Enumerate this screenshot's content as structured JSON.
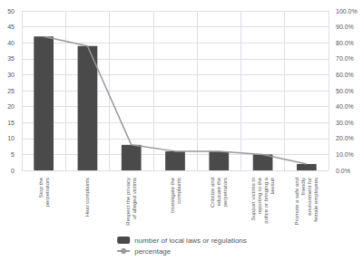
{
  "chart_data": {
    "type": "bar",
    "categories": [
      "Stop the\nperpetrators",
      "Hear complaints",
      "Respect the privacy\nof alleged victims",
      "Investigate the\ncomplaints",
      "Criticize and\neducate the\nperpetrators",
      "Support victims in\nreporting to the\npolice or bringing a\nlawsuit",
      "Promote a safe and\nfriendly\nenvironment for\nfemale employees"
    ],
    "series": [
      {
        "name": "number of local laws or regulations",
        "type": "bar",
        "color": "#4a4a4a",
        "values": [
          42,
          39,
          8,
          6,
          6,
          5,
          2
        ]
      },
      {
        "name": "percentage",
        "type": "line",
        "color": "#999999",
        "axis": "y2",
        "values": [
          0.84,
          0.78,
          0.16,
          0.12,
          0.12,
          0.1,
          0.04
        ]
      }
    ],
    "ylim": [
      0,
      50
    ],
    "yticks": [
      0,
      5,
      10,
      15,
      20,
      25,
      30,
      35,
      40,
      45,
      50
    ],
    "y2lim": [
      0.0,
      1.0
    ],
    "y2ticks": [
      {
        "value": 0.0,
        "label": "0.0%"
      },
      {
        "value": 0.1,
        "label": "10.0%"
      },
      {
        "value": 0.2,
        "label": "20.0%"
      },
      {
        "value": 0.3,
        "label": "30.0%"
      },
      {
        "value": 0.4,
        "label": "40.0%"
      },
      {
        "value": 0.5,
        "label": "50.0%"
      },
      {
        "value": 0.6,
        "label": "60.0%"
      },
      {
        "value": 0.7,
        "label": "70.0%"
      },
      {
        "value": 0.8,
        "label": "80.0%"
      },
      {
        "value": 0.9,
        "label": "90.0%"
      },
      {
        "value": 1.0,
        "label": "100.0%"
      }
    ],
    "grid": true,
    "legend": "bottom"
  }
}
